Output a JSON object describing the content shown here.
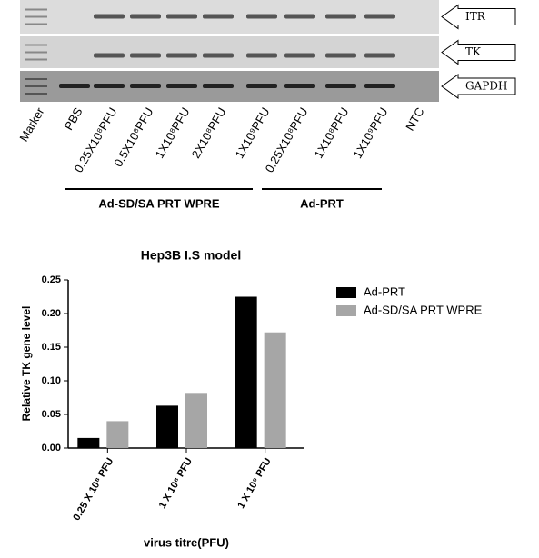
{
  "gel": {
    "panels": [
      "ITR",
      "TK",
      "GAPDH"
    ],
    "lanes": [
      "Marker",
      "PBS",
      "0.25X10⁸PFU",
      "0.5X10⁸PFU",
      "1X10⁸PFU",
      "2X10⁸PFU",
      "1X10⁹PFU",
      "0.25X10⁸PFU",
      "1X10⁸PFU",
      "1X10⁹PFU",
      "NTC"
    ],
    "groups": [
      "Ad-SD/SA PRT WPRE",
      "Ad-PRT"
    ]
  },
  "chart_data": {
    "type": "bar",
    "title": "Hep3B I.S model",
    "x_label": "virus titre(PFU)",
    "y_label": "Relative TK gene level",
    "categories": [
      "0.25 X 10⁸ PFU",
      "1 X 10⁸ PFU",
      "1 X 10⁹ PFU"
    ],
    "series": [
      {
        "name": "Ad-PRT",
        "color": "#000000",
        "values": [
          0.015,
          0.063,
          0.225
        ]
      },
      {
        "name": "Ad-SD/SA PRT WPRE",
        "color": "#a6a6a6",
        "values": [
          0.04,
          0.082,
          0.172
        ]
      }
    ],
    "ylim": [
      0,
      0.25
    ],
    "yticks": [
      {
        "value": 0,
        "label": "0.00"
      },
      {
        "value": 0.05,
        "label": "0.05"
      },
      {
        "value": 0.1,
        "label": "0.10"
      },
      {
        "value": 0.15,
        "label": "0.15"
      },
      {
        "value": 0.2,
        "label": "0.20"
      },
      {
        "value": 0.25,
        "label": "0.25"
      }
    ],
    "grid": false,
    "legend": "right"
  }
}
